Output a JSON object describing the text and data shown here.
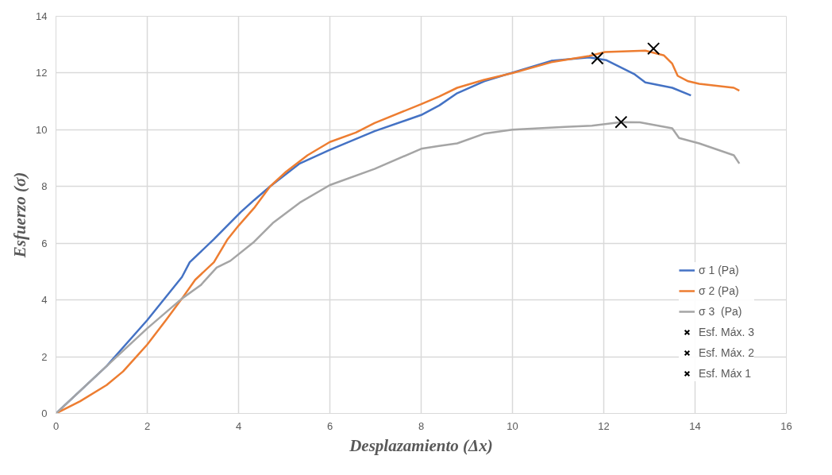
{
  "chart_data": {
    "type": "line",
    "xlabel": "Desplazamiento (Δx)",
    "ylabel": "Esfuerzo (σ)",
    "xlim": [
      0,
      16
    ],
    "ylim": [
      0,
      14
    ],
    "xticks": [
      0,
      2,
      4,
      6,
      8,
      10,
      12,
      14,
      16
    ],
    "yticks": [
      0,
      2,
      4,
      6,
      8,
      10,
      12,
      14
    ],
    "grid": true,
    "legend": "bottom right",
    "line_style": "solid",
    "series": [
      {
        "name": "σ 1 (Pa)",
        "color": "#4472c4",
        "x": [
          0,
          1.11,
          2.0,
          2.76,
          2.93,
          3.46,
          4.05,
          4.34,
          4.69,
          5.34,
          6.0,
          6.98,
          8.0,
          8.4,
          8.79,
          9.38,
          10.85,
          11.68,
          12.06,
          12.68,
          12.91,
          13.5,
          13.91
        ],
        "values": [
          0,
          1.67,
          3.29,
          4.81,
          5.33,
          6.14,
          7.1,
          7.52,
          8.0,
          8.81,
          9.29,
          9.95,
          10.52,
          10.86,
          11.29,
          11.71,
          12.43,
          12.55,
          12.45,
          11.95,
          11.67,
          11.48,
          11.21
        ]
      },
      {
        "name": "σ 2 (Pa)",
        "color": "#ed7d31",
        "x": [
          0,
          0.53,
          1.11,
          1.47,
          1.76,
          2.0,
          2.41,
          2.76,
          3.05,
          3.46,
          3.76,
          4.0,
          4.34,
          4.69,
          5.04,
          5.51,
          6.0,
          6.57,
          6.98,
          8.0,
          8.39,
          8.79,
          9.38,
          10.0,
          10.85,
          11.68,
          12.03,
          12.91,
          13.32,
          13.5,
          13.62,
          13.85,
          14.09,
          14.85,
          14.97
        ],
        "values": [
          0,
          0.43,
          1.0,
          1.48,
          2.0,
          2.43,
          3.29,
          4.05,
          4.71,
          5.33,
          6.14,
          6.62,
          7.24,
          8.0,
          8.52,
          9.1,
          9.57,
          9.9,
          10.24,
          10.9,
          11.17,
          11.48,
          11.76,
          12.0,
          12.38,
          12.6,
          12.74,
          12.79,
          12.62,
          12.33,
          11.9,
          11.71,
          11.62,
          11.48,
          11.38
        ]
      },
      {
        "name": "σ 3  (Pa)",
        "color": "#a5a5a5",
        "x": [
          0,
          1.11,
          2.0,
          2.76,
          3.17,
          3.52,
          3.82,
          4.34,
          4.75,
          5.34,
          6.0,
          6.98,
          8.0,
          8.39,
          8.79,
          9.38,
          10.0,
          11.15,
          11.74,
          12.38,
          12.79,
          13.5,
          13.65,
          14.09,
          14.85,
          14.97
        ],
        "values": [
          0,
          1.67,
          3.0,
          4.05,
          4.52,
          5.14,
          5.38,
          6.05,
          6.71,
          7.43,
          8.05,
          8.62,
          9.33,
          9.43,
          9.52,
          9.86,
          10.0,
          10.1,
          10.14,
          10.27,
          10.26,
          10.05,
          9.71,
          9.52,
          9.1,
          8.81
        ]
      },
      {
        "name": "Esf. Máx. 3",
        "type": "scatter",
        "marker": "cross",
        "color": "#000000",
        "x": [
          12.38
        ],
        "values": [
          10.27
        ]
      },
      {
        "name": "Esf. Máx. 2",
        "type": "scatter",
        "marker": "cross",
        "color": "#000000",
        "x": [
          13.09
        ],
        "values": [
          12.86
        ]
      },
      {
        "name": "Esf. Máx 1",
        "type": "scatter",
        "marker": "cross",
        "color": "#000000",
        "x": [
          11.86
        ],
        "values": [
          12.52
        ]
      }
    ]
  }
}
